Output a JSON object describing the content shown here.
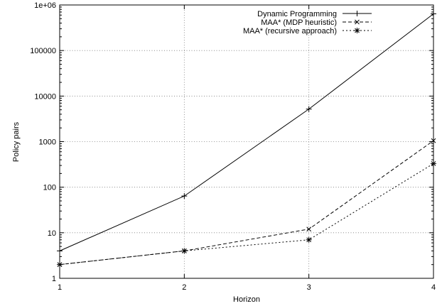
{
  "chart_data": {
    "type": "line",
    "xlabel": "Horizon",
    "ylabel": "Policy pairs",
    "x": [
      1,
      2,
      3,
      4
    ],
    "xticks": [
      "1",
      "2",
      "3",
      "4"
    ],
    "xlim": [
      1,
      4
    ],
    "yscale": "log",
    "ylim": [
      1,
      1000000
    ],
    "yticks": [
      {
        "value": 1,
        "label": "1"
      },
      {
        "value": 10,
        "label": "10"
      },
      {
        "value": 100,
        "label": "100"
      },
      {
        "value": 1000,
        "label": "1000"
      },
      {
        "value": 10000,
        "label": "10000"
      },
      {
        "value": 100000,
        "label": "100000"
      },
      {
        "value": 1000000,
        "label": "1e+06"
      }
    ],
    "grid": true,
    "legend_position": "top-right",
    "series": [
      {
        "name": "Dynamic Programming",
        "values": [
          4,
          64,
          5184,
          639000
        ],
        "marker": "plus",
        "dash": "solid"
      },
      {
        "name": "MAA* (MDP heuristic)",
        "values": [
          2,
          4,
          12,
          1050
        ],
        "marker": "cross",
        "dash": "dashed"
      },
      {
        "name": "MAA* (recursive approach)",
        "values": [
          2,
          4,
          7,
          330
        ],
        "marker": "star",
        "dash": "dotted"
      }
    ]
  }
}
